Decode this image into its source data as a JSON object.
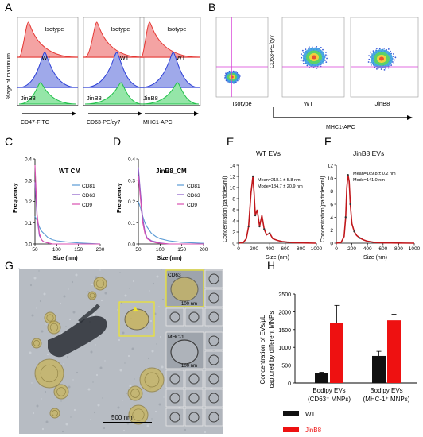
{
  "panels": {
    "A": {
      "letter": "A",
      "ylabel": "%age of maximum",
      "isotype": "Isotype",
      "wt": "WT",
      "jinb8": "JinB8",
      "xlabels": [
        "CD47-FITC",
        "CD63-PE/cy7",
        "MHC1-APC"
      ],
      "colors": {
        "isotype": "#e53935",
        "wt": "#2c3fd6",
        "jinb8": "#21c04a"
      }
    },
    "B": {
      "letter": "B",
      "ylabel": "CD63-PE/cy7",
      "xlabel": "MHC1-APC",
      "plots": [
        "Isotype",
        "WT",
        "JinB8"
      ],
      "quadrant_color": "#d63cd6"
    },
    "C": {
      "letter": "C",
      "title": "WT CM",
      "ylabel": "Frequency",
      "xlabel": "Size (nm)",
      "xticks": [
        "50",
        "100",
        "150",
        "200"
      ],
      "yticks": [
        "0.0",
        "0.1",
        "0.2",
        "0.3",
        "0.4"
      ],
      "legend": [
        "CD81",
        "CD63",
        "CD9"
      ]
    },
    "D": {
      "letter": "D",
      "title": "JinB8_CM",
      "ylabel": "Frequency",
      "xlabel": "Size (nm)",
      "xticks": [
        "50",
        "100",
        "150",
        "200"
      ],
      "yticks": [
        "0.0",
        "0.1",
        "0.2",
        "0.3",
        "0.4"
      ],
      "legend": [
        "CD81",
        "CD63",
        "CD9"
      ]
    },
    "E": {
      "letter": "E",
      "title": "WT EVs",
      "ylabel": "Concentration(particles/ml)",
      "xlabel": "Size (nm)",
      "xticks": [
        "0",
        "200",
        "400",
        "600",
        "800",
        "1000"
      ],
      "yticks": [
        "0",
        "2",
        "4",
        "6",
        "8",
        "10",
        "12",
        "14"
      ],
      "stats_mean": "Mean=218.1 ± 5.8 nm",
      "stats_mode": "Mode=184.7 ± 20.9 nm"
    },
    "F": {
      "letter": "F",
      "title": "JinB8 EVs",
      "ylabel": "Concentration(particles/ml)",
      "xlabel": "Size (nm)",
      "xticks": [
        "0",
        "200",
        "400",
        "600",
        "800",
        "1000"
      ],
      "yticks": [
        "0",
        "2",
        "4",
        "6",
        "8",
        "10",
        "12"
      ],
      "stats_mean": "Mean=169.8 ± 0.2 nm",
      "stats_mode": "Mode=141.0 nm"
    },
    "G": {
      "letter": "G",
      "inset1_label": "CD63",
      "inset2_label": "MHC-1",
      "inset_scale": "100 nm",
      "scale_bar": "500 nm"
    },
    "H": {
      "letter": "H",
      "ylabel_line1": "Concentration of EVs/µL",
      "ylabel_line2": "captured by different MNPs"
    }
  },
  "chart_data": [
    {
      "id": "C",
      "type": "line",
      "title": "WT CM",
      "xlabel": "Size (nm)",
      "ylabel": "Frequency",
      "xlim": [
        50,
        200
      ],
      "ylim": [
        0,
        0.4
      ],
      "series": [
        {
          "name": "CD81",
          "color": "#5b9bd5",
          "x": [
            50,
            55,
            60,
            65,
            70,
            80,
            90,
            100,
            120,
            150,
            200
          ],
          "y": [
            0.13,
            0.11,
            0.08,
            0.06,
            0.05,
            0.03,
            0.02,
            0.015,
            0.01,
            0.005,
            0.0
          ]
        },
        {
          "name": "CD63",
          "color": "#8a5cc8",
          "x": [
            50,
            55,
            60,
            65,
            70,
            80,
            90,
            100,
            120,
            150,
            200
          ],
          "y": [
            0.29,
            0.12,
            0.04,
            0.02,
            0.01,
            0.005,
            0.0,
            0.0,
            0.0,
            0.0,
            0.0
          ]
        },
        {
          "name": "CD9",
          "color": "#d94fb0",
          "x": [
            50,
            55,
            60,
            65,
            70,
            80,
            90,
            100,
            120,
            150,
            200
          ],
          "y": [
            0.37,
            0.14,
            0.05,
            0.02,
            0.01,
            0.005,
            0.0,
            0.0,
            0.0,
            0.0,
            0.0
          ]
        }
      ]
    },
    {
      "id": "D",
      "type": "line",
      "title": "JinB8_CM",
      "xlabel": "Size (nm)",
      "ylabel": "Frequency",
      "xlim": [
        50,
        200
      ],
      "ylim": [
        0,
        0.4
      ],
      "series": [
        {
          "name": "CD81",
          "color": "#5b9bd5",
          "x": [
            50,
            55,
            60,
            65,
            70,
            80,
            90,
            100,
            120,
            150,
            200
          ],
          "y": [
            0.2,
            0.17,
            0.13,
            0.1,
            0.08,
            0.05,
            0.035,
            0.025,
            0.015,
            0.008,
            0.003
          ]
        },
        {
          "name": "CD63",
          "color": "#8a5cc8",
          "x": [
            50,
            55,
            60,
            65,
            70,
            80,
            90,
            100,
            120,
            150,
            200
          ],
          "y": [
            0.36,
            0.24,
            0.12,
            0.06,
            0.03,
            0.015,
            0.01,
            0.005,
            0.0,
            0.0,
            0.0
          ]
        },
        {
          "name": "CD9",
          "color": "#d94fb0",
          "x": [
            50,
            55,
            60,
            65,
            70,
            80,
            90,
            100,
            120,
            150,
            200
          ],
          "y": [
            0.32,
            0.21,
            0.1,
            0.05,
            0.025,
            0.012,
            0.006,
            0.003,
            0.0,
            0.0,
            0.0
          ]
        }
      ]
    },
    {
      "id": "E",
      "type": "line",
      "title": "WT EVs",
      "xlabel": "Size (nm)",
      "ylabel": "Concentration(particles/ml)",
      "xlim": [
        0,
        1000
      ],
      "ylim": [
        0,
        14
      ],
      "series": [
        {
          "name": "",
          "color": "#c0171b",
          "x": [
            0,
            60,
            100,
            130,
            160,
            185,
            200,
            215,
            240,
            270,
            300,
            330,
            360,
            400,
            440,
            500,
            560,
            620,
            700,
            800,
            1000
          ],
          "y": [
            0,
            0.1,
            0.8,
            3,
            9,
            12,
            9,
            5,
            6,
            3,
            5,
            2.5,
            1.5,
            1.8,
            0.8,
            0.5,
            0.3,
            0.2,
            0.1,
            0.05,
            0
          ]
        }
      ]
    },
    {
      "id": "F",
      "type": "line",
      "title": "JinB8 EVs",
      "xlabel": "Size (nm)",
      "ylabel": "Concentration(particles/ml)",
      "xlim": [
        0,
        1000
      ],
      "ylim": [
        0,
        12
      ],
      "series": [
        {
          "name": "",
          "color": "#c0171b",
          "x": [
            0,
            60,
            100,
            120,
            135,
            150,
            165,
            180,
            200,
            230,
            260,
            300,
            350,
            400,
            500,
            600,
            800,
            1000
          ],
          "y": [
            0,
            0.1,
            1,
            4,
            8.5,
            10.5,
            9.5,
            6,
            3,
            1.8,
            1.2,
            0.8,
            0.5,
            0.3,
            0.1,
            0.05,
            0.02,
            0
          ]
        }
      ]
    },
    {
      "id": "H",
      "type": "bar",
      "ylabel": "Concentration of EVs/µL captured by different MNPs",
      "ylim": [
        0,
        2500
      ],
      "yticks": [
        "0",
        "500",
        "1000",
        "1500",
        "2000",
        "2500"
      ],
      "categories": [
        [
          "Bodipy EVs",
          "(CD63⁺ MNPs)"
        ],
        [
          "Bodipy EVs",
          "(MHC-1⁺ MNPs)"
        ]
      ],
      "series": [
        {
          "name": "WT",
          "color": "#111111",
          "values": [
            270,
            760
          ],
          "errors": [
            30,
            130
          ]
        },
        {
          "name": "JinB8",
          "color": "#ee1111",
          "values": [
            1680,
            1760
          ],
          "errors": [
            500,
            170
          ]
        }
      ],
      "legend": [
        "WT",
        "JinB8"
      ]
    }
  ]
}
